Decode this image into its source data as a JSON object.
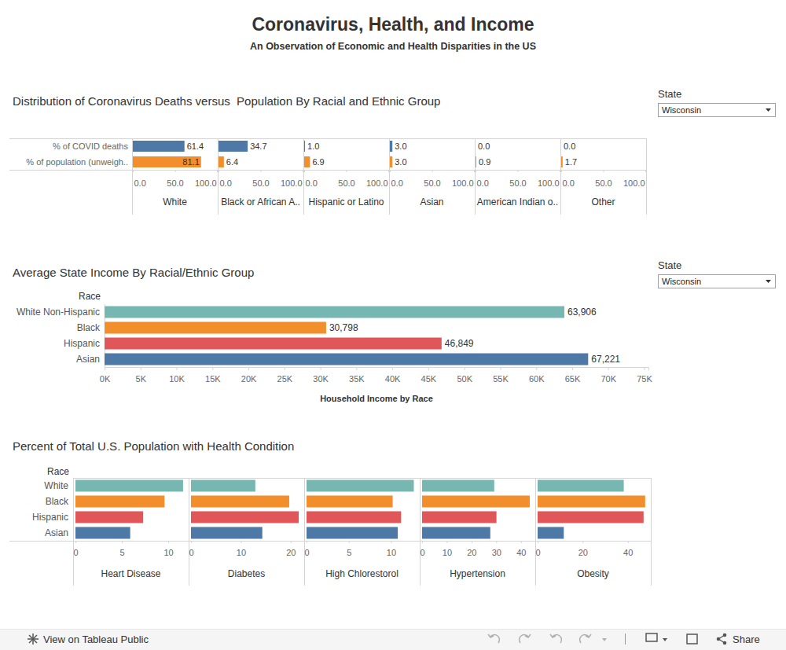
{
  "title": "Coronavirus, Health, and Income",
  "subtitle": "An Observation of Economic and Health Disparities in the US",
  "controls": [
    {
      "label": "State",
      "value": "Wisconsin"
    },
    {
      "label": "State",
      "value": "Wisconsin"
    }
  ],
  "footer": {
    "link": "View on Tableau Public",
    "share": "Share"
  },
  "chart_data": [
    {
      "type": "bar",
      "orientation": "horizontal",
      "title": "Distribution of Coronavirus Deaths versus  Population By Racial and Ethnic Group",
      "categories": [
        "% of COVID deaths",
        "% of population (unweigh.."
      ],
      "colors": [
        "#4e79a7",
        "#f28e2b"
      ],
      "series": [
        {
          "name": "White",
          "values": [
            61.4,
            81.1
          ],
          "value_labels": [
            "61.4",
            "81.1"
          ]
        },
        {
          "name": "Black or African A..",
          "values": [
            34.7,
            6.4
          ],
          "value_labels": [
            "34.7",
            "6.4"
          ]
        },
        {
          "name": "Hispanic or Latino",
          "values": [
            1.0,
            6.9
          ],
          "value_labels": [
            "1.0",
            "6.9"
          ]
        },
        {
          "name": "Asian",
          "values": [
            3.0,
            3.0
          ],
          "value_labels": [
            "3.0",
            "3.0"
          ]
        },
        {
          "name": "American Indian o..",
          "values": [
            0.0,
            0.9
          ],
          "value_labels": [
            "0.0",
            "0.9"
          ]
        },
        {
          "name": "Other",
          "values": [
            0.0,
            1.7
          ],
          "value_labels": [
            "0.0",
            "1.7"
          ]
        }
      ],
      "xlim": [
        0,
        100
      ],
      "xticks": [
        {
          "value": 0,
          "label": "0.0"
        },
        {
          "value": 50,
          "label": "50.0"
        },
        {
          "value": 100,
          "label": "100.0"
        }
      ],
      "data_labels": true,
      "grid": false
    },
    {
      "type": "bar",
      "orientation": "horizontal",
      "title": "Average State Income By Racial/Ethnic Group",
      "y_label": "Race",
      "x_label": "Household Income by Race",
      "categories": [
        "White Non-Hispanic",
        "Black",
        "Hispanic",
        "Asian"
      ],
      "values": [
        63906,
        30798,
        46849,
        67221
      ],
      "value_labels": [
        "63,906",
        "30,798",
        "46,849",
        "67,221"
      ],
      "colors": [
        "#76b7b2",
        "#f28e2b",
        "#e15759",
        "#4e79a7"
      ],
      "xlim": [
        0,
        75600
      ],
      "xticks": [
        {
          "value": 0,
          "label": "0K"
        },
        {
          "value": 5000,
          "label": "5K"
        },
        {
          "value": 10000,
          "label": "10K"
        },
        {
          "value": 15000,
          "label": "15K"
        },
        {
          "value": 20000,
          "label": "20K"
        },
        {
          "value": 25000,
          "label": "25K"
        },
        {
          "value": 30000,
          "label": "30K"
        },
        {
          "value": 35000,
          "label": "35K"
        },
        {
          "value": 40000,
          "label": "40K"
        },
        {
          "value": 45000,
          "label": "45K"
        },
        {
          "value": 50000,
          "label": "50K"
        },
        {
          "value": 55000,
          "label": "55K"
        },
        {
          "value": 60000,
          "label": "60K"
        },
        {
          "value": 65000,
          "label": "65K"
        },
        {
          "value": 70000,
          "label": "70K"
        },
        {
          "value": 75000,
          "label": "75K"
        }
      ],
      "data_labels": true,
      "grid": false
    },
    {
      "type": "bar",
      "orientation": "horizontal",
      "title": "Percent of Total U.S. Population with Health Condition",
      "y_label": "Race",
      "categories": [
        "White",
        "Black",
        "Hispanic",
        "Asian"
      ],
      "colors": [
        "#76b7b2",
        "#f28e2b",
        "#e15759",
        "#4e79a7"
      ],
      "series": [
        {
          "name": "Heart Disease",
          "values": [
            11.6,
            9.6,
            7.3,
            5.9
          ],
          "xlim": [
            0,
            12.2
          ],
          "xticks": [
            0,
            5,
            10
          ]
        },
        {
          "name": "Diabetes",
          "values": [
            12.9,
            19.7,
            21.6,
            14.3
          ],
          "xlim": [
            0,
            22.7
          ],
          "xticks": [
            0,
            10,
            20
          ]
        },
        {
          "name": "High Chlorestorol",
          "values": [
            12.7,
            10.2,
            11.2,
            10.8
          ],
          "xlim": [
            0,
            13.4
          ],
          "xticks": [
            0,
            5,
            10
          ]
        },
        {
          "name": "Hypertension",
          "values": [
            29.2,
            43.6,
            30.1,
            27.6
          ],
          "xlim": [
            0,
            45.8
          ],
          "xticks": [
            0,
            10,
            20,
            30,
            40
          ]
        },
        {
          "name": "Obesity",
          "values": [
            38.2,
            47.7,
            47.0,
            11.6
          ],
          "xlim": [
            0,
            50.2
          ],
          "xticks": [
            0,
            20,
            40
          ]
        }
      ],
      "data_labels": false,
      "grid": false
    }
  ]
}
